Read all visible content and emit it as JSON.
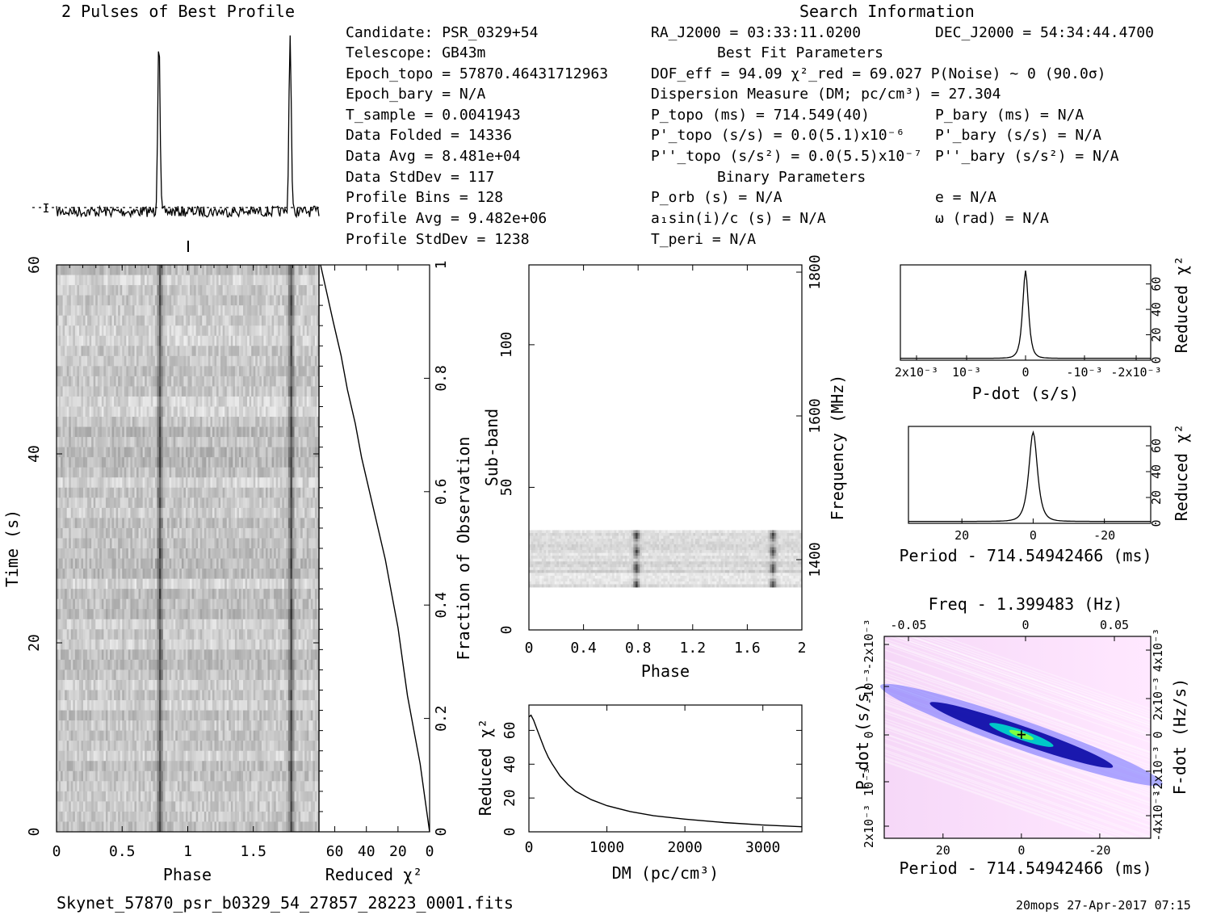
{
  "header": {
    "profile_title": "2 Pulses of Best Profile",
    "search_title": "Search Information",
    "filename": "Skynet_57870_psr_b0329_54_27857_28223_0001.fits",
    "footer_stamp": "20mops 27-Apr-2017 07:15"
  },
  "info": {
    "col1": [
      "Candidate:  PSR_0329+54",
      "Telescope:  GB43m",
      "Epoch_topo = 57870.46431712963",
      "Epoch_bary = N/A",
      "T_sample      =  0.0041943",
      "Data Folded   =  14336",
      "Data Avg      =  8.481e+04",
      "Data StdDev   =  117",
      "Profile Bins  =  128",
      "Profile Avg   =  9.482e+06",
      "Profile StdDev =  1238"
    ],
    "ra": "RA_J2000 = 03:33:11.0200",
    "dec": "DEC_J2000 = 54:34:44.4700",
    "best_fit_title": "Best Fit Parameters",
    "dof": "DOF_eff = 94.09  χ²_red = 69.027  P(Noise) ~ 0   (90.0σ)",
    "dm_line": "Dispersion Measure (DM; pc/cm³) = 27.304",
    "p_topo": "P_topo (ms) =  714.549(40)",
    "pd_topo": "P'_topo (s/s) = 0.0(5.1)x10⁻⁶",
    "pdd_topo": "P''_topo (s/s²) = 0.0(5.5)x10⁻⁷",
    "p_bary": "P_bary (ms) = N/A",
    "pd_bary": "P'_bary (s/s) = N/A",
    "pdd_bary": "P''_bary (s/s²) = N/A",
    "binary_title": "Binary Parameters",
    "p_orb": "P_orb (s) = N/A",
    "a1sini": "a₁sin(i)/c (s) = N/A",
    "t_peri": "T_peri = N/A",
    "ecc": "e = N/A",
    "omega": "ω (rad) = N/A"
  },
  "chart_data": [
    {
      "id": "profile",
      "type": "line",
      "title": "2 Pulses of Best Profile",
      "x": [
        0,
        2
      ],
      "peaks_phase": [
        0.78,
        1.78
      ],
      "baseline_marker": "dotted"
    },
    {
      "id": "time_phase",
      "type": "heatmap",
      "xlabel": "Phase",
      "ylabel": "Time (s)",
      "xlim": [
        0,
        2
      ],
      "ylim": [
        0,
        60
      ],
      "xticks": [
        "0",
        "0.5",
        "1",
        "1.5"
      ],
      "yticks": [
        "0",
        "20",
        "40",
        "60"
      ],
      "pulse_phase": [
        0.78,
        1.78
      ]
    },
    {
      "id": "time_chi2",
      "type": "line",
      "xlabel": "Reduced χ²",
      "ylabel": "Fraction of Observation",
      "xlim": [
        70,
        0
      ],
      "ylim": [
        0,
        1
      ],
      "xticks": [
        "60",
        "40",
        "20",
        "0"
      ],
      "yticks": [
        "0",
        "0.2",
        "0.4",
        "0.6",
        "0.8",
        "1"
      ],
      "x": [
        0,
        3,
        6,
        10,
        14,
        17,
        20,
        24,
        28,
        33,
        38,
        43,
        47,
        52,
        56,
        61,
        65,
        69
      ],
      "y": [
        0,
        0.06,
        0.12,
        0.18,
        0.24,
        0.3,
        0.36,
        0.42,
        0.48,
        0.54,
        0.6,
        0.66,
        0.72,
        0.78,
        0.84,
        0.9,
        0.95,
        1.0
      ]
    },
    {
      "id": "subband_phase",
      "type": "heatmap",
      "xlabel": "Phase",
      "ylabel": "Sub-band",
      "y2label": "Frequency (MHz)",
      "xlim": [
        0,
        2
      ],
      "ylim": [
        0,
        128
      ],
      "xticks": [
        "0",
        "0.4",
        "0.8",
        "1.2",
        "1.6",
        "2"
      ],
      "yticks": [
        "0",
        "50",
        "100"
      ],
      "y2ticks": [
        "1400",
        "1600",
        "1800"
      ],
      "data_band": [
        15,
        35
      ],
      "pulse_phase": [
        0.78,
        1.78
      ]
    },
    {
      "id": "dm_chi2",
      "type": "line",
      "xlabel": "DM (pc/cm³)",
      "ylabel": "Reduced χ²",
      "xlim": [
        0,
        3500
      ],
      "ylim": [
        0,
        75
      ],
      "xticks": [
        "0",
        "1000",
        "2000",
        "3000"
      ],
      "yticks": [
        "0",
        "20",
        "40",
        "60"
      ],
      "x": [
        0,
        27,
        60,
        100,
        150,
        200,
        250,
        300,
        400,
        500,
        600,
        800,
        1000,
        1300,
        1600,
        2000,
        2500,
        3000,
        3500
      ],
      "y": [
        68,
        69,
        66,
        61,
        55,
        49,
        44,
        40,
        33,
        28,
        24,
        19,
        15.5,
        12,
        9.5,
        7.5,
        5.5,
        4,
        3
      ]
    },
    {
      "id": "pdot_chi2",
      "type": "line",
      "xlabel": "P-dot (s/s)",
      "ylabel": "Reduced χ²",
      "xlim": [
        0.0022,
        -0.0022
      ],
      "ylim": [
        0,
        75
      ],
      "xticks": [
        "2x10⁻³",
        "10⁻³",
        "0",
        "-10⁻³",
        "-2x10⁻³"
      ],
      "yticks": [
        "0",
        "20",
        "40",
        "60"
      ],
      "peak": 69
    },
    {
      "id": "period_chi2",
      "type": "line",
      "xlabel": "Period - 714.54942466 (ms)",
      "ylabel": "Reduced χ²",
      "xlim": [
        35,
        -33
      ],
      "ylim": [
        0,
        75
      ],
      "xticks": [
        "20",
        "0",
        "-20"
      ],
      "yticks": [
        "0",
        "20",
        "40",
        "60"
      ],
      "peak": 69
    },
    {
      "id": "period_pdot",
      "type": "heatmap",
      "xlabel": "Period - 714.54942466 (ms)",
      "ylabel": "P-dot (s/s)",
      "x2label": "Freq - 1.399483 (Hz)",
      "y2label": "F-dot (Hz/s)",
      "xlim": [
        35,
        -33
      ],
      "xticks": [
        "20",
        "0",
        "-20"
      ],
      "x2ticks": [
        "-0.05",
        "0",
        "0.05"
      ],
      "yticks": [
        "2x10⁻³",
        "10⁻³",
        "0",
        "-10⁻³",
        "-2x10⁻³"
      ],
      "y2ticks": [
        "-4x10⁻³",
        "-2x10⁻³",
        "0",
        "2x10⁻³",
        "4x10⁻³"
      ],
      "colors": [
        "#ffe6ff",
        "#6a6aff",
        "#0000a0",
        "#00c8c8",
        "#80ff40"
      ]
    }
  ]
}
